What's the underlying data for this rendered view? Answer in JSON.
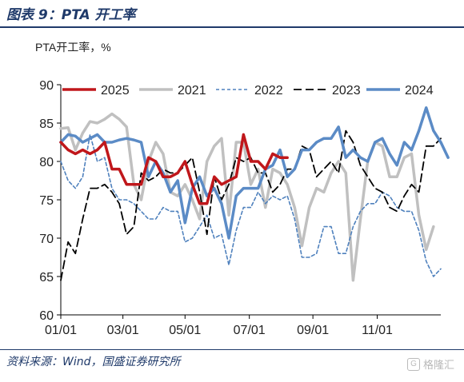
{
  "header": {
    "title": "图表 9：PTA 开工率"
  },
  "footer": {
    "source": "资料来源：Wind，国盛证券研究所",
    "watermark": "格隆汇"
  },
  "chart_data": {
    "type": "line",
    "unit_label": "PTA开工率，%",
    "ylim": [
      60,
      90
    ],
    "y_ticks": [
      60,
      65,
      70,
      75,
      80,
      85,
      90
    ],
    "x_ticks": [
      "01/01",
      "03/01",
      "05/01",
      "07/01",
      "09/01",
      "11/01"
    ],
    "x_domain_weeks": [
      0,
      52
    ],
    "x_tick_weeks": [
      0,
      8.5,
      17,
      25.8,
      34.5,
      43.3
    ],
    "legend_position": "top",
    "series": [
      {
        "name": "2025",
        "color": "#c0171b",
        "width": 3.5,
        "dash": "",
        "values": [
          82.5,
          81.5,
          81,
          81.5,
          81,
          81.5,
          82.5,
          79,
          79,
          77,
          77,
          77,
          80.5,
          80,
          78,
          78,
          78.5,
          80,
          77,
          74.5,
          74.5,
          78,
          77,
          77.5,
          78,
          83.5,
          80,
          80,
          79,
          81,
          80.5,
          80.5
        ]
      },
      {
        "name": "2021",
        "color": "#c0c0c0",
        "width": 3.5,
        "dash": "",
        "values": [
          84.3,
          84.4,
          81.5,
          83.7,
          85.2,
          85,
          85.5,
          86.2,
          85.5,
          84.5,
          77,
          75,
          80,
          82.5,
          81,
          76,
          75.5,
          77,
          75,
          72.5,
          80,
          82,
          83,
          73,
          82.5,
          82.5,
          77,
          79,
          74,
          79,
          78.5,
          77,
          74,
          69,
          74,
          76.5,
          76,
          78.5,
          80,
          78.5,
          64.5,
          72.5,
          80,
          82.5,
          82,
          78,
          78,
          80.5,
          81,
          73,
          68.5,
          71.5
        ]
      },
      {
        "name": "2022",
        "color": "#4f81bd",
        "width": 1.6,
        "dash": "4,3",
        "values": [
          80,
          77.5,
          76.5,
          78,
          83.5,
          80,
          80.5,
          76.5,
          75,
          75,
          74.5,
          73.5,
          72.5,
          72.5,
          74,
          73.5,
          73.5,
          69.5,
          70,
          71.5,
          73,
          70,
          70.5,
          66.5,
          71,
          74,
          74,
          76,
          74.5,
          75.5,
          75,
          75.5,
          72.5,
          67.5,
          67.5,
          68,
          71.5,
          71.5,
          68,
          68,
          71.5,
          73.5,
          74.5,
          74.5,
          76,
          75.5,
          74,
          73.5,
          73.5,
          71,
          67,
          65,
          66
        ]
      },
      {
        "name": "2023",
        "color": "#000000",
        "width": 1.8,
        "dash": "10,5",
        "values": [
          64.5,
          69.5,
          68,
          72.5,
          76.5,
          76.5,
          77,
          76,
          74.5,
          70.5,
          71.5,
          78.5,
          77.5,
          78,
          79,
          78.5,
          78.5,
          79.5,
          80.5,
          76,
          70.5,
          78,
          75,
          77,
          80.5,
          80,
          80.5,
          78.5,
          78.5,
          76,
          77,
          79,
          79,
          82,
          81.5,
          78,
          79,
          80,
          78.5,
          84,
          82.5,
          79.5,
          78,
          76.5,
          76,
          74,
          73.5,
          75.5,
          77,
          76,
          82,
          82,
          83
        ]
      },
      {
        "name": "2024",
        "color": "#5b8bc6",
        "width": 3.5,
        "dash": "",
        "values": [
          82.5,
          83.5,
          83.3,
          82.5,
          83,
          83.5,
          82.5,
          82.5,
          82.8,
          83,
          82.8,
          82.5,
          78,
          80,
          78.5,
          76,
          77.5,
          72,
          76.5,
          78,
          75.5,
          76.5,
          74.5,
          70,
          75.5,
          76.5,
          76.5,
          76.5,
          79,
          79.5,
          81.5,
          78,
          79,
          81.5,
          81.5,
          82.5,
          83,
          83,
          84.5,
          80.5,
          81.5,
          80.5,
          80,
          82.5,
          83,
          81,
          79.5,
          82.5,
          81.5,
          84,
          87,
          84,
          82.5,
          80.5
        ]
      }
    ]
  }
}
